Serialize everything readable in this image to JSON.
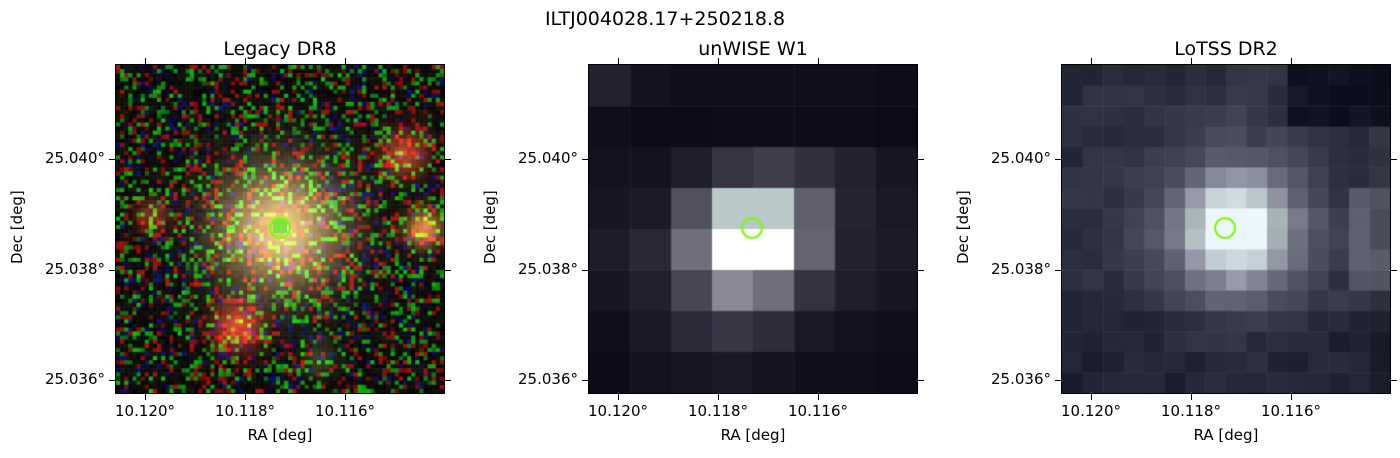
{
  "figure": {
    "title": "ILTJ004028.17+250218.8"
  },
  "panels": [
    {
      "id": "legacy",
      "title": "Legacy DR8",
      "xlabel": "RA [deg]",
      "ylabel": "Dec [deg]",
      "xticks": [
        "10.120°",
        "10.118°",
        "10.116°"
      ],
      "yticks": [
        "25.040°",
        "25.038°",
        "25.036°"
      ],
      "marker_color": "#7cfc00"
    },
    {
      "id": "unwise",
      "title": "unWISE W1",
      "xlabel": "RA [deg]",
      "ylabel": "Dec [deg]",
      "xticks": [
        "10.120°",
        "10.118°",
        "10.116°"
      ],
      "yticks": [
        "25.040°",
        "25.038°",
        "25.036°"
      ],
      "marker_color": "#7cfc00"
    },
    {
      "id": "lotss",
      "title": "LoTSS DR2",
      "xlabel": "RA [deg]",
      "ylabel": "Dec [deg]",
      "xticks": [
        "10.120°",
        "10.118°",
        "10.116°"
      ],
      "yticks": [
        "25.040°",
        "25.038°",
        "25.036°"
      ],
      "marker_color": "#7cfc00"
    }
  ]
}
